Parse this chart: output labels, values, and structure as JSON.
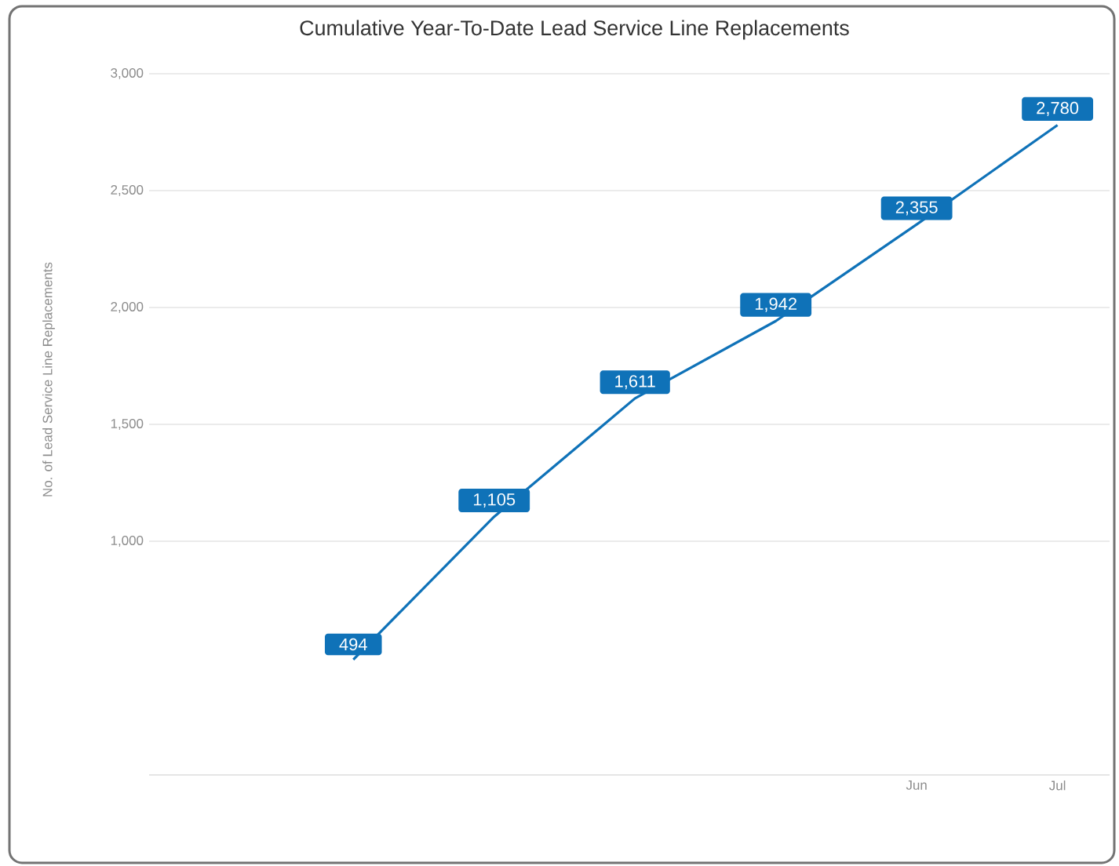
{
  "chart_data": {
    "type": "line",
    "title": "Cumulative Year-To-Date Lead Service Line Replacements",
    "ylabel": "No. of Lead Service Line Replacements",
    "categories": [
      null,
      null,
      null,
      null,
      null,
      "Jun",
      "Jul"
    ],
    "series": [
      {
        "color": "#0f72b8",
        "values": [
          null,
          494,
          1105,
          1611,
          1942,
          2355,
          2780
        ],
        "value_labels": [
          null,
          "494",
          "1,105",
          "1,611",
          "1,942",
          "2,355",
          "2,780"
        ]
      }
    ],
    "ylim": [
      0,
      3000
    ],
    "yticks": [
      {
        "value": 1000,
        "label": "1,000"
      },
      {
        "value": 1500,
        "label": "1,500"
      },
      {
        "value": 2000,
        "label": "2,000"
      },
      {
        "value": 2500,
        "label": "2,500"
      },
      {
        "value": 3000,
        "label": "3,000"
      }
    ],
    "grid": "y",
    "marker": "none",
    "line_style": "solid"
  }
}
